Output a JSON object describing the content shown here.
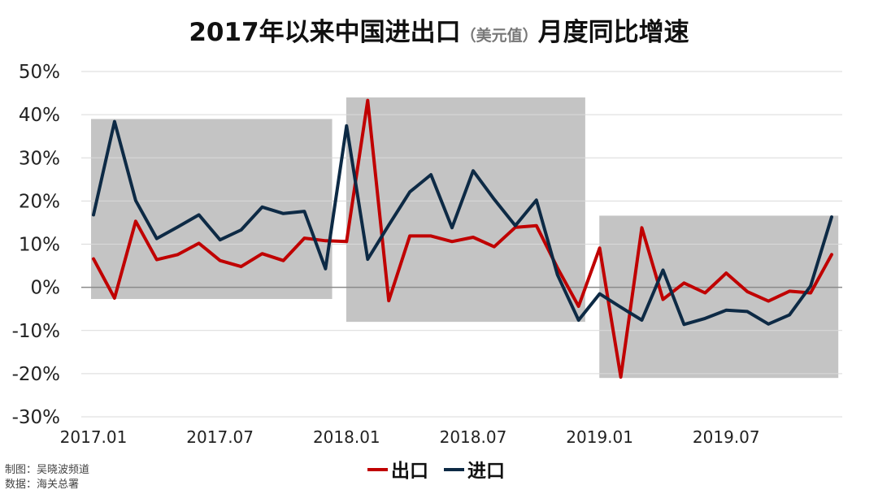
{
  "chart_data": {
    "type": "line",
    "title": {
      "part1": "2017年以来中国进出口",
      "part2": "（美元值）",
      "part3": "月度同比增速"
    },
    "ylim": [
      -30,
      50
    ],
    "y_ticks": [
      -30,
      -20,
      -10,
      0,
      10,
      20,
      30,
      40,
      50
    ],
    "y_tick_labels": [
      "-30%",
      "-20%",
      "-10%",
      "0%",
      "10%",
      "20%",
      "30%",
      "40%",
      "50%"
    ],
    "x_count": 36,
    "x_ticks": [
      {
        "index": 0,
        "label": "2017.01"
      },
      {
        "index": 6,
        "label": "2017.07"
      },
      {
        "index": 12,
        "label": "2018.01"
      },
      {
        "index": 18,
        "label": "2018.07"
      },
      {
        "index": 24,
        "label": "2019.01"
      },
      {
        "index": 30,
        "label": "2019.07"
      }
    ],
    "shaded_periods": [
      {
        "from": 0,
        "to": 11.2,
        "ymin": -2.7,
        "ymax": 39
      },
      {
        "from": 12.1,
        "to": 23.2,
        "ymin": -8,
        "ymax": 44
      },
      {
        "from": 24.1,
        "to": 35.2,
        "ymin": -21,
        "ymax": 16.6
      }
    ],
    "grid": true,
    "legend_position": "bottom",
    "series": [
      {
        "name": "出口",
        "color": "#c00000",
        "values": [
          6.6,
          -2.5,
          15.3,
          6.4,
          7.6,
          10.2,
          6.2,
          4.8,
          7.8,
          6.2,
          11.4,
          10.8,
          10.6,
          43.3,
          -3.1,
          11.9,
          11.9,
          10.6,
          11.6,
          9.4,
          13.9,
          14.3,
          4.5,
          -4.4,
          9.1,
          -20.8,
          13.8,
          -2.8,
          1.0,
          -1.3,
          3.3,
          -1.0,
          -3.2,
          -0.9,
          -1.3,
          7.6
        ]
      },
      {
        "name": "进口",
        "color": "#0d2a45",
        "values": [
          16.8,
          38.4,
          20.1,
          11.3,
          14.0,
          16.8,
          11.0,
          13.3,
          18.6,
          17.1,
          17.6,
          4.3,
          37.4,
          6.5,
          14.4,
          22.1,
          26.1,
          13.8,
          27.0,
          20.4,
          14.3,
          20.2,
          2.9,
          -7.6,
          -1.5,
          -4.6,
          -7.6,
          4.0,
          -8.6,
          -7.2,
          -5.3,
          -5.6,
          -8.5,
          -6.4,
          0.3,
          16.3
        ]
      }
    ]
  },
  "credits": {
    "line1": "制图：吴晓波频道",
    "line2": "数据：海关总署"
  }
}
